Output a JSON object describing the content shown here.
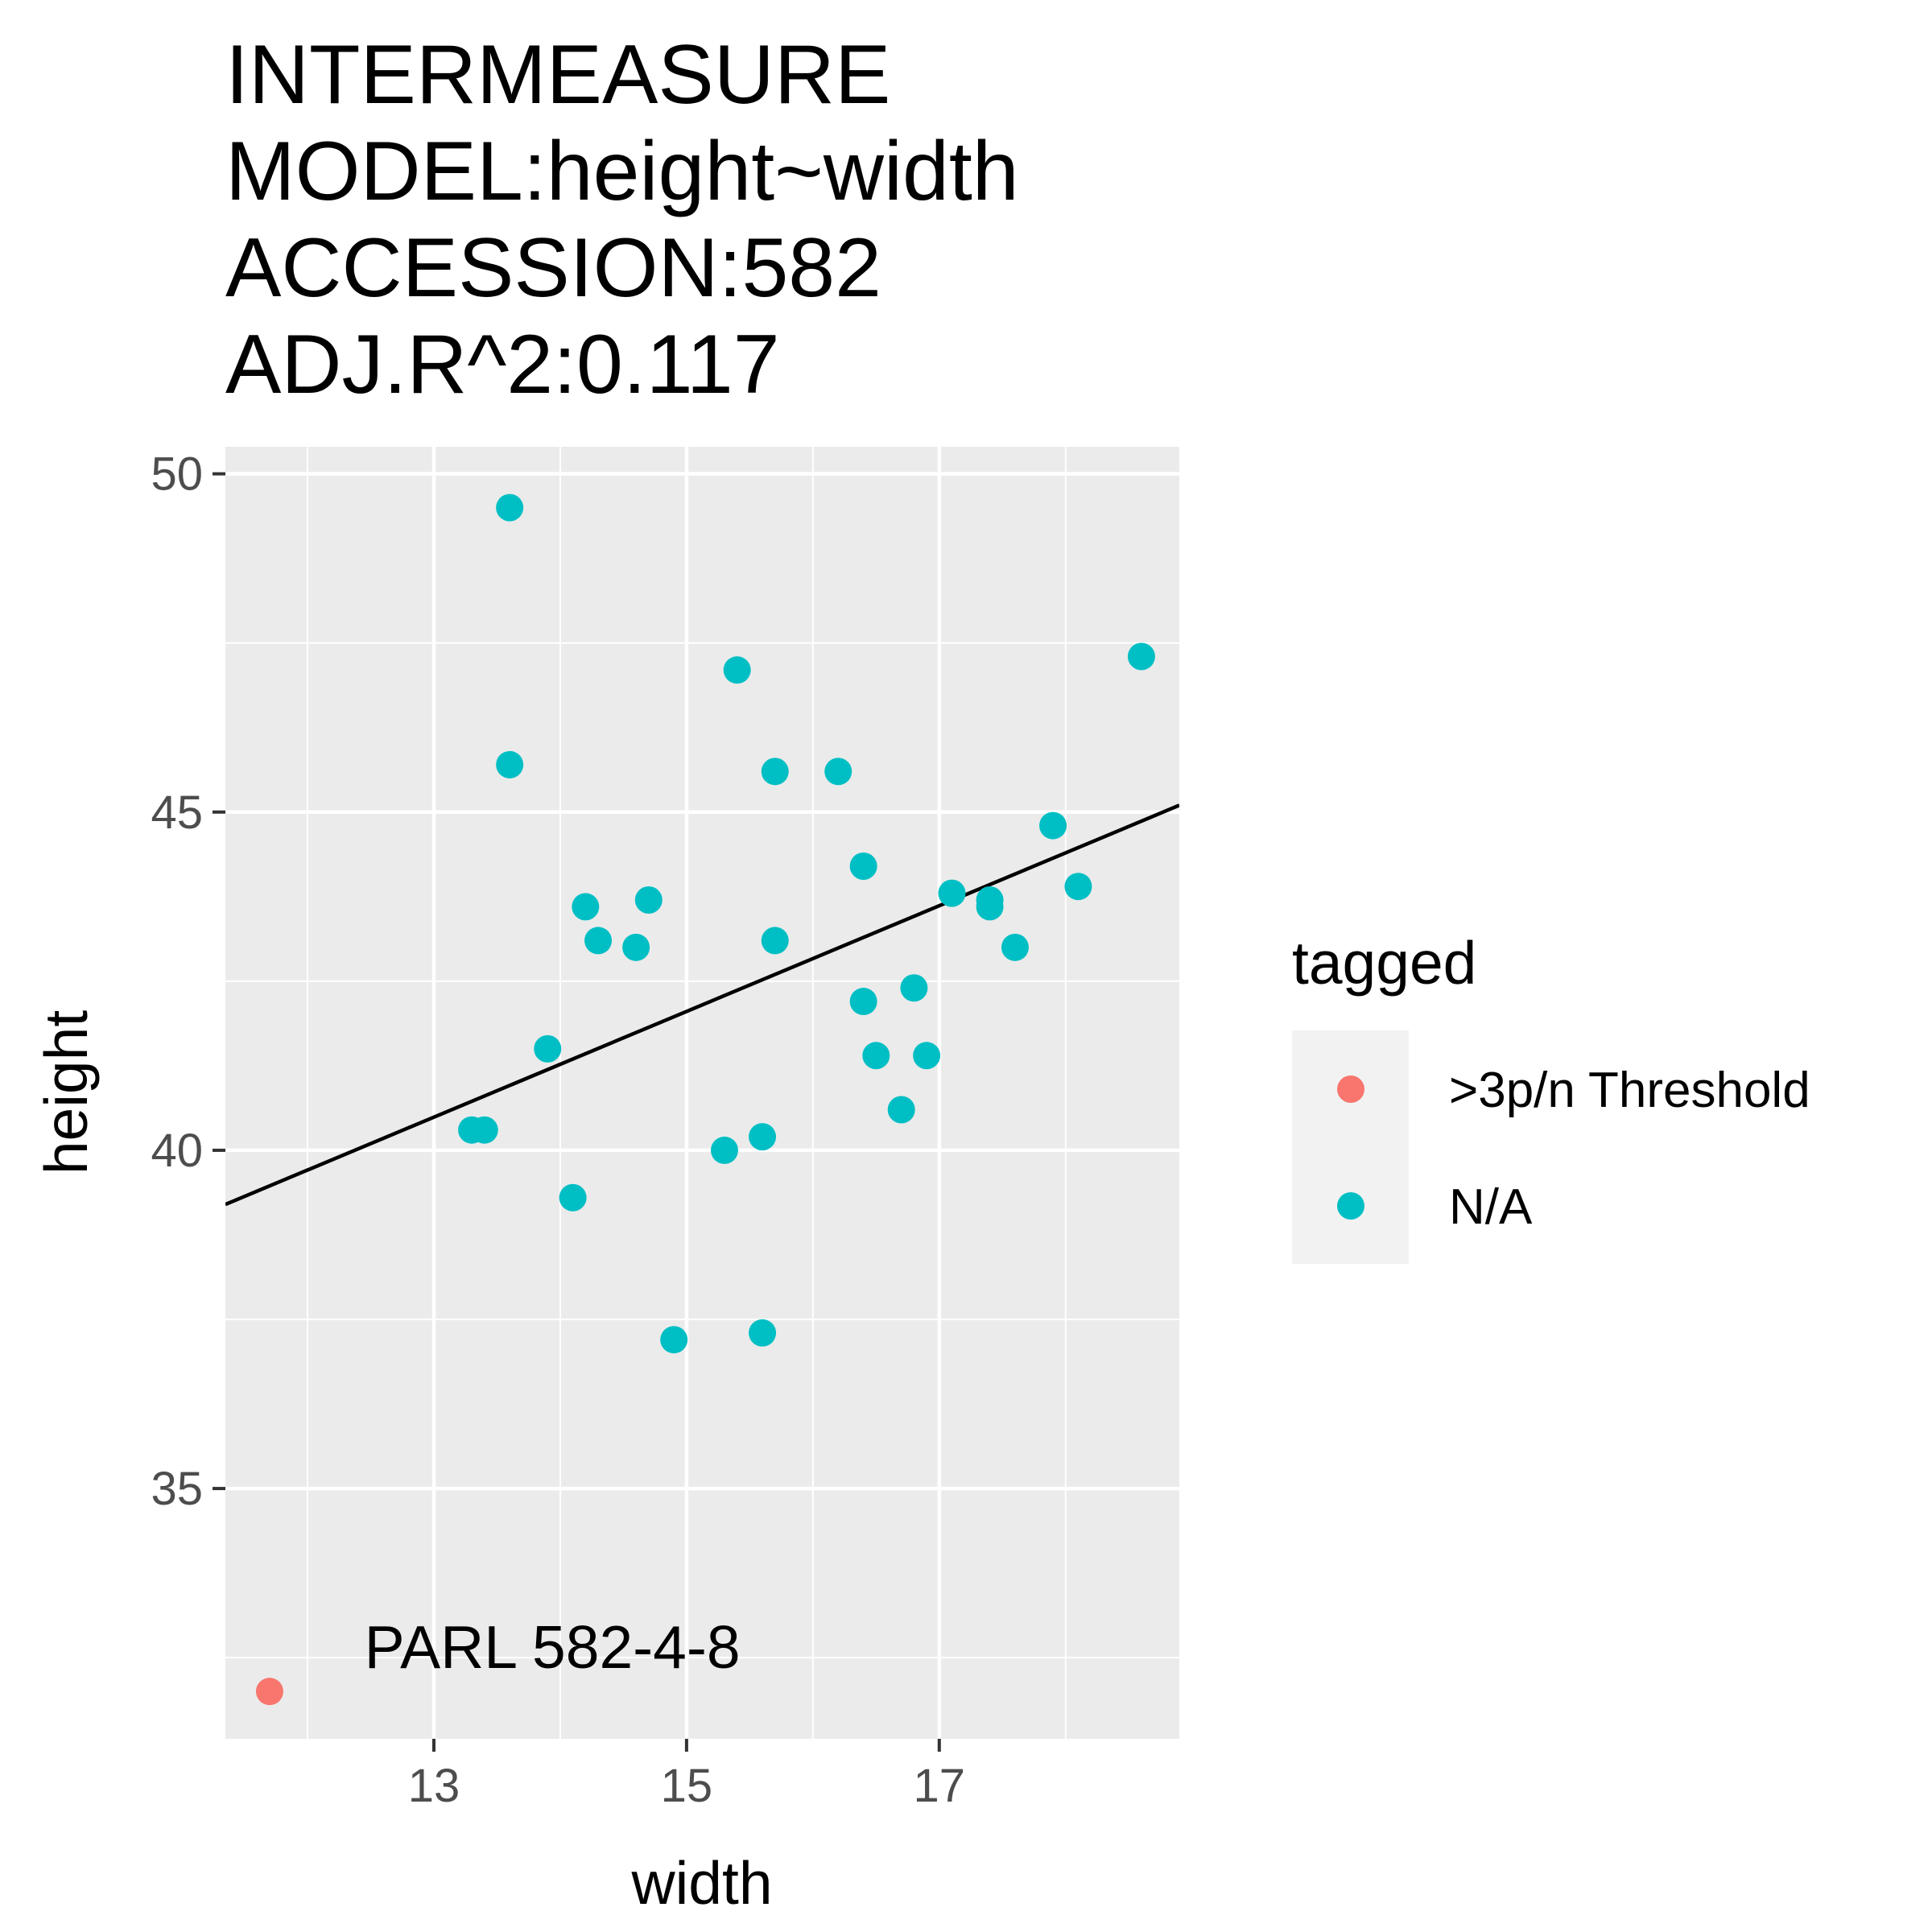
{
  "chart_data": {
    "type": "scatter",
    "title_lines": [
      "INTERMEASURE",
      "MODEL:height~width",
      "ACCESSION:582",
      "ADJ.R^2:0.117"
    ],
    "xlabel": "width",
    "ylabel": "height",
    "xlim": [
      11.35,
      18.9
    ],
    "ylim": [
      31.3,
      50.4
    ],
    "x_ticks": [
      13,
      15,
      17
    ],
    "y_ticks": [
      35,
      40,
      45,
      50
    ],
    "grid": true,
    "panel_background": "#ebebeb",
    "legend": {
      "title": "tagged",
      "position": "right",
      "entries": [
        {
          "label": ">3p/n Threshold",
          "color": "#f8766d"
        },
        {
          "label": "N/A",
          "color": "#00bfc4"
        }
      ]
    },
    "series": [
      {
        "name": ">3p/n Threshold",
        "color": "#f8766d",
        "points": [
          {
            "x": 11.7,
            "y": 32.0
          }
        ]
      },
      {
        "name": "N/A",
        "color": "#00bfc4",
        "points": [
          {
            "x": 13.6,
            "y": 49.5
          },
          {
            "x": 13.6,
            "y": 45.7
          },
          {
            "x": 13.3,
            "y": 40.3
          },
          {
            "x": 13.4,
            "y": 40.3
          },
          {
            "x": 13.9,
            "y": 41.5
          },
          {
            "x": 14.1,
            "y": 39.3
          },
          {
            "x": 14.2,
            "y": 43.6
          },
          {
            "x": 14.3,
            "y": 43.1
          },
          {
            "x": 14.6,
            "y": 43.0
          },
          {
            "x": 14.7,
            "y": 43.7
          },
          {
            "x": 14.9,
            "y": 37.2
          },
          {
            "x": 15.3,
            "y": 40.0
          },
          {
            "x": 15.4,
            "y": 47.1
          },
          {
            "x": 15.6,
            "y": 40.2
          },
          {
            "x": 15.6,
            "y": 37.3
          },
          {
            "x": 15.7,
            "y": 45.6
          },
          {
            "x": 15.7,
            "y": 43.1
          },
          {
            "x": 16.2,
            "y": 45.6
          },
          {
            "x": 16.4,
            "y": 44.2
          },
          {
            "x": 16.4,
            "y": 42.2
          },
          {
            "x": 16.5,
            "y": 41.4
          },
          {
            "x": 16.7,
            "y": 40.6
          },
          {
            "x": 16.8,
            "y": 42.4
          },
          {
            "x": 16.9,
            "y": 41.4
          },
          {
            "x": 17.1,
            "y": 43.8
          },
          {
            "x": 17.4,
            "y": 43.7
          },
          {
            "x": 17.4,
            "y": 43.6
          },
          {
            "x": 17.6,
            "y": 43.0
          },
          {
            "x": 17.9,
            "y": 44.8
          },
          {
            "x": 18.1,
            "y": 43.9
          },
          {
            "x": 18.6,
            "y": 47.3
          }
        ]
      }
    ],
    "fit_line": {
      "x": [
        11.35,
        18.9
      ],
      "y": [
        39.2,
        45.1
      ]
    },
    "annotations": [
      {
        "text": "PARL 582-4-8",
        "x": 12.45,
        "y": 32.35,
        "anchor": "start"
      },
      {
        "text": "PARL 582-4-8",
        "x": 11.33,
        "y": 32.35,
        "anchor": "end"
      }
    ]
  }
}
